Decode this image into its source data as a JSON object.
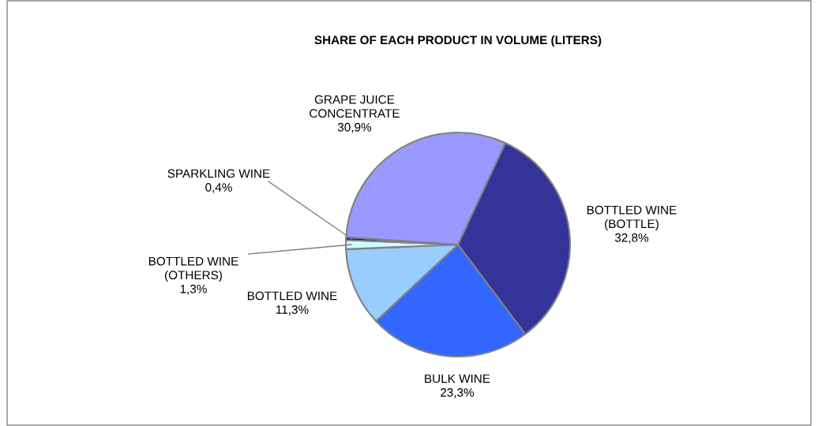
{
  "chart_data": {
    "type": "pie",
    "title": "SHARE OF EACH PRODUCT IN VOLUME (LITERS)",
    "categories": [
      "BOTTLED WINE\n(BOTTLE)",
      "BULK WINE",
      "BOTTLED WINE",
      "BOTTLED WINE\n(OTHERS)",
      "SPARKLING WINE",
      "GRAPE JUICE\nCONCENTRATE"
    ],
    "values": [
      32.8,
      23.3,
      11.3,
      1.3,
      0.4,
      30.9
    ],
    "value_labels": [
      "32,8%",
      "23,3%",
      "11,3%",
      "1,3%",
      "0,4%",
      "30,9%"
    ],
    "colors": [
      "#333399",
      "#3366ff",
      "#99ccff",
      "#ccffff",
      "#000080",
      "#9999ff"
    ],
    "legend": false
  }
}
